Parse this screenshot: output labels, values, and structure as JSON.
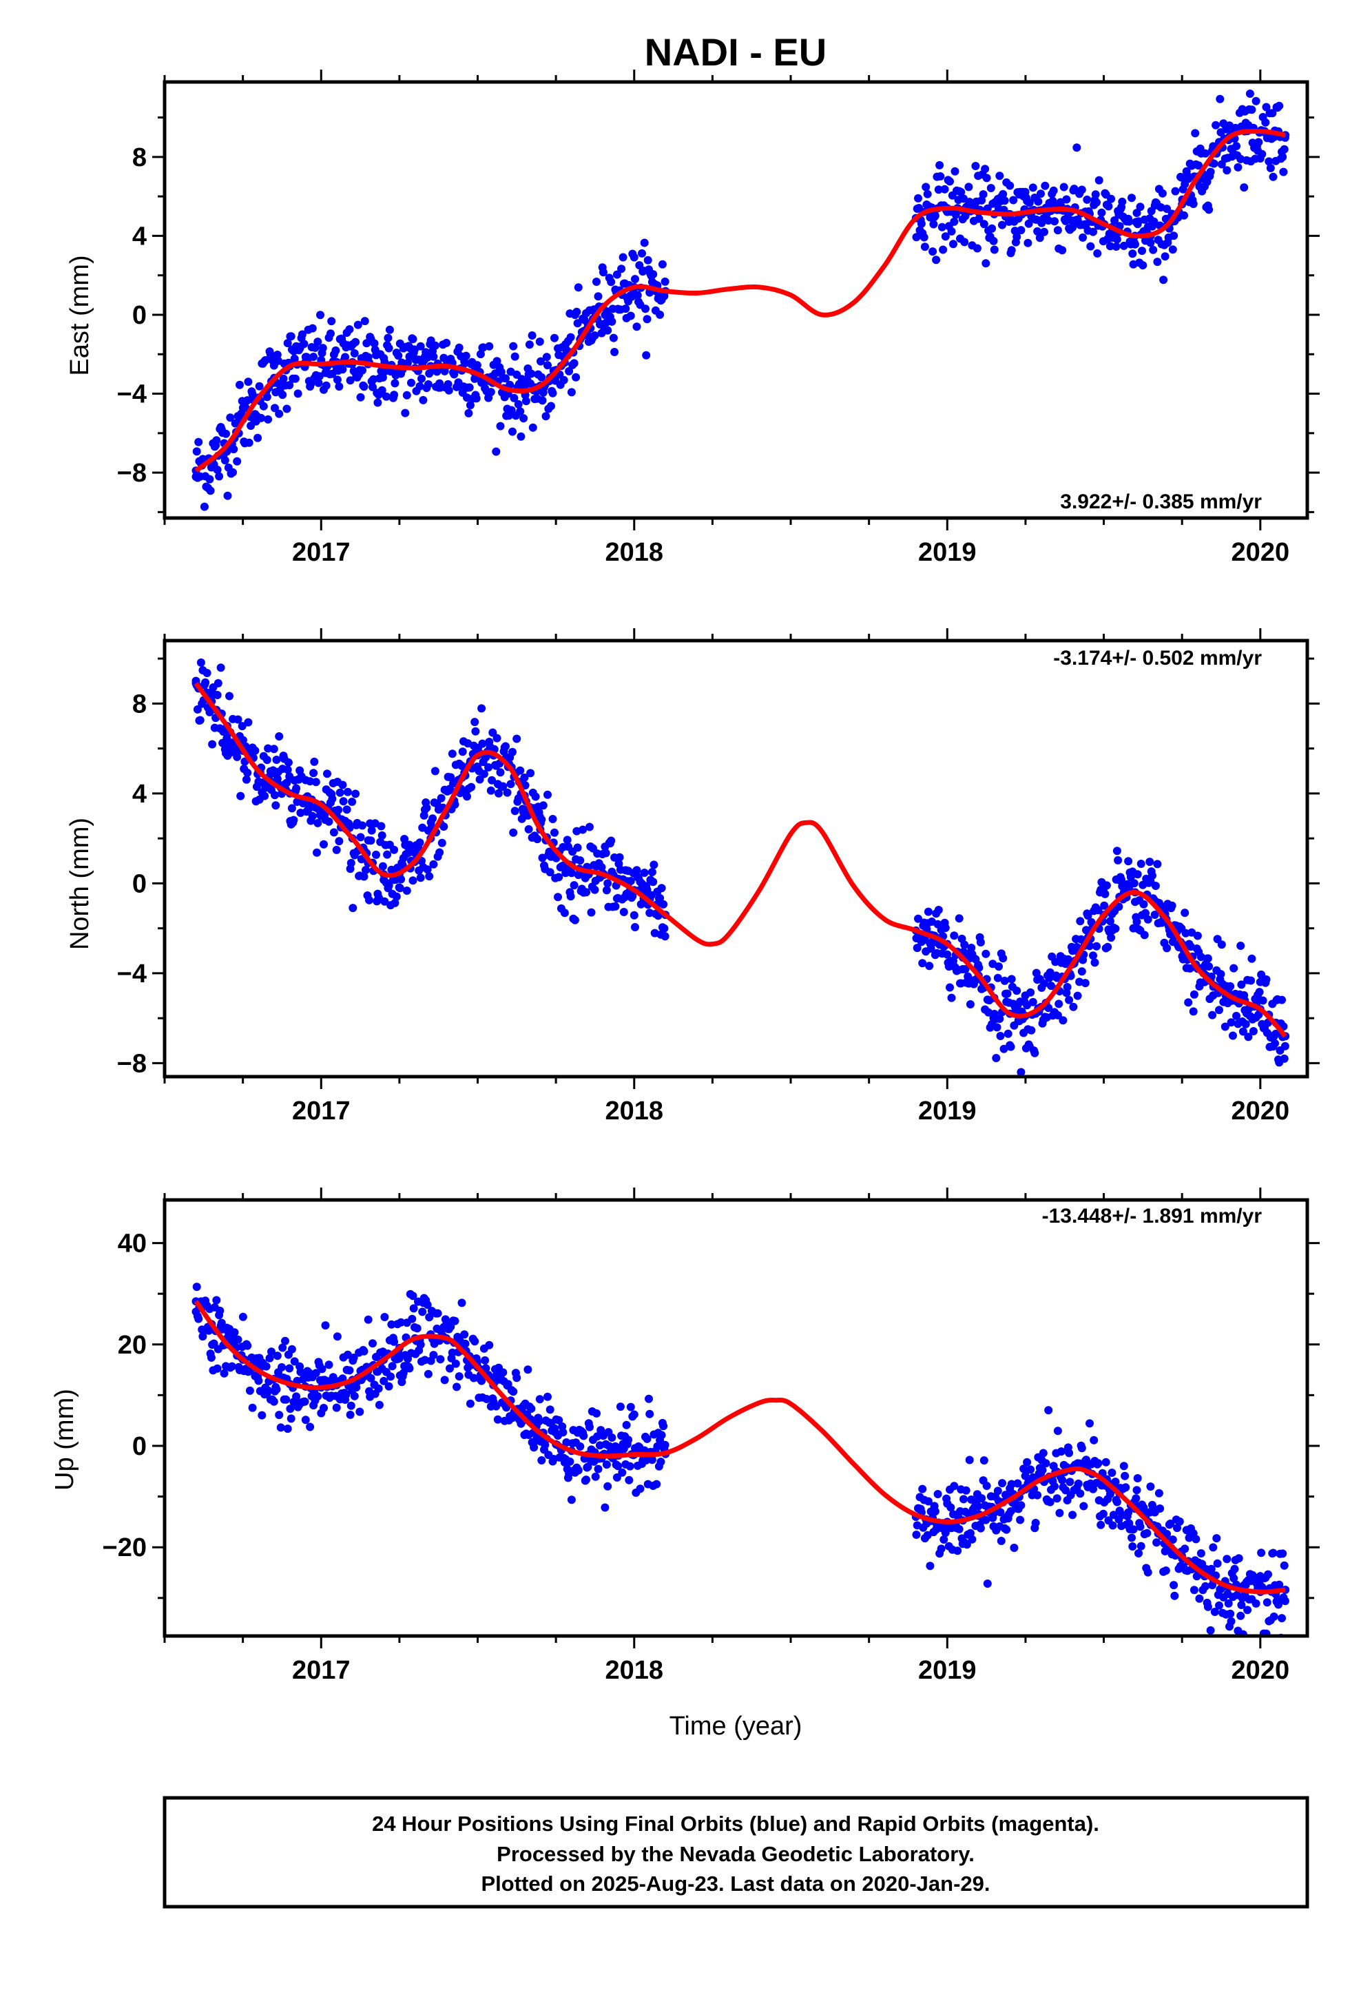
{
  "figure": {
    "title": "NADI - EU",
    "xlabel": "Time (year)",
    "footer": {
      "line1": "24 Hour Positions Using Final Orbits (blue) and Rapid Orbits (magenta).",
      "line2": "Processed by the Nevada Geodetic Laboratory.",
      "line3": "Plotted on 2025-Aug-23. Last data on 2020-Jan-29."
    },
    "colors": {
      "points": "#0000ff",
      "fit": "#ff0000",
      "frame": "#000000"
    }
  },
  "chart_data": [
    {
      "type": "scatter",
      "ylabel": "East (mm)",
      "rate_label": "3.922+/- 0.385 mm/yr",
      "rate_position": "bottom-right",
      "xlim": [
        2016.5,
        2020.15
      ],
      "ylim": [
        -10.3,
        11.8
      ],
      "xticks": [
        2017,
        2018,
        2019,
        2020
      ],
      "yticks": [
        -8,
        -4,
        0,
        4,
        8
      ],
      "grid": false,
      "series": [
        {
          "kind": "points",
          "color": "#0000ff",
          "x": [
            2016.6,
            2016.65,
            2016.7,
            2016.75,
            2016.8,
            2016.85,
            2016.9,
            2016.95,
            2017.0,
            2017.05,
            2017.1,
            2017.15,
            2017.2,
            2017.25,
            2017.3,
            2017.35,
            2017.4,
            2017.45,
            2017.5,
            2017.55,
            2017.6,
            2017.65,
            2017.7,
            2017.75,
            2017.8,
            2017.85,
            2017.9,
            2017.95,
            2018.0,
            2018.05,
            2018.1,
            2018.9,
            2018.95,
            2019.0,
            2019.05,
            2019.1,
            2019.15,
            2019.2,
            2019.25,
            2019.3,
            2019.35,
            2019.4,
            2019.45,
            2019.5,
            2019.55,
            2019.6,
            2019.65,
            2019.7,
            2019.75,
            2019.8,
            2019.85,
            2019.9,
            2019.95,
            2020.0,
            2020.05,
            2020.08
          ],
          "y": [
            -7.9,
            -7.5,
            -6.6,
            -5.3,
            -4.2,
            -3.2,
            -2.6,
            -2.4,
            -2.5,
            -2.4,
            -2.4,
            -2.5,
            -2.6,
            -2.7,
            -2.7,
            -2.6,
            -2.6,
            -2.7,
            -3.0,
            -3.4,
            -3.8,
            -3.9,
            -3.6,
            -2.9,
            -1.9,
            -0.7,
            0.4,
            1.2,
            1.4,
            1.3,
            1.2,
            4.9,
            5.4,
            5.4,
            5.3,
            5.2,
            5.1,
            5.1,
            5.2,
            5.3,
            5.4,
            5.3,
            5.0,
            4.6,
            4.2,
            4.0,
            4.0,
            4.5,
            5.6,
            7.0,
            8.2,
            9.0,
            9.3,
            9.3,
            9.2,
            9.1
          ]
        },
        {
          "kind": "fit",
          "color": "#ff0000",
          "x": [
            2016.6,
            2016.7,
            2016.8,
            2016.9,
            2017.0,
            2017.1,
            2017.2,
            2017.3,
            2017.4,
            2017.5,
            2017.6,
            2017.7,
            2017.8,
            2017.9,
            2018.0,
            2018.1,
            2018.2,
            2018.3,
            2018.4,
            2018.5,
            2018.6,
            2018.7,
            2018.8,
            2018.9,
            2019.0,
            2019.1,
            2019.2,
            2019.3,
            2019.4,
            2019.5,
            2019.6,
            2019.7,
            2019.8,
            2019.9,
            2020.0,
            2020.08
          ],
          "y": [
            -7.9,
            -6.6,
            -4.2,
            -2.6,
            -2.5,
            -2.4,
            -2.6,
            -2.7,
            -2.6,
            -3.0,
            -3.8,
            -3.6,
            -1.9,
            0.4,
            1.4,
            1.2,
            1.1,
            1.3,
            1.4,
            1.0,
            0.0,
            0.6,
            2.5,
            4.9,
            5.4,
            5.2,
            5.1,
            5.3,
            5.3,
            4.6,
            4.0,
            4.5,
            7.0,
            9.0,
            9.3,
            9.1
          ]
        }
      ]
    },
    {
      "type": "scatter",
      "ylabel": "North (mm)",
      "rate_label": "-3.174+/- 0.502 mm/yr",
      "rate_position": "top-right",
      "xlim": [
        2016.5,
        2020.15
      ],
      "ylim": [
        -8.6,
        10.8
      ],
      "xticks": [
        2017,
        2018,
        2019,
        2020
      ],
      "yticks": [
        -8,
        -4,
        0,
        4,
        8
      ],
      "grid": false,
      "series": [
        {
          "kind": "points",
          "color": "#0000ff",
          "x": [
            2016.6,
            2016.65,
            2016.7,
            2016.75,
            2016.8,
            2016.85,
            2016.9,
            2016.95,
            2017.0,
            2017.05,
            2017.1,
            2017.15,
            2017.2,
            2017.25,
            2017.3,
            2017.35,
            2017.4,
            2017.45,
            2017.5,
            2017.55,
            2017.6,
            2017.65,
            2017.7,
            2017.75,
            2017.8,
            2017.85,
            2017.9,
            2017.95,
            2018.0,
            2018.05,
            2018.1,
            2018.9,
            2018.95,
            2019.0,
            2019.05,
            2019.1,
            2019.15,
            2019.2,
            2019.25,
            2019.3,
            2019.35,
            2019.4,
            2019.45,
            2019.5,
            2019.55,
            2019.6,
            2019.65,
            2019.7,
            2019.75,
            2019.8,
            2019.85,
            2019.9,
            2019.95,
            2020.0,
            2020.05,
            2020.08
          ],
          "y": [
            8.9,
            8.1,
            7.0,
            5.9,
            5.0,
            4.5,
            4.0,
            3.8,
            3.5,
            3.0,
            2.0,
            0.9,
            0.4,
            0.4,
            1.0,
            2.0,
            3.3,
            4.7,
            5.7,
            5.9,
            5.2,
            3.9,
            2.4,
            1.3,
            0.8,
            0.5,
            0.4,
            0.2,
            -0.3,
            -0.7,
            -1.4,
            -2.1,
            -2.3,
            -2.7,
            -3.3,
            -4.1,
            -5.1,
            -5.8,
            -5.9,
            -5.5,
            -4.7,
            -3.6,
            -2.4,
            -1.4,
            -0.6,
            -0.4,
            -0.7,
            -1.6,
            -2.7,
            -3.8,
            -4.6,
            -5.0,
            -5.2,
            -5.6,
            -6.2,
            -6.8
          ]
        },
        {
          "kind": "fit",
          "color": "#ff0000",
          "x": [
            2016.6,
            2016.7,
            2016.8,
            2016.9,
            2017.0,
            2017.1,
            2017.2,
            2017.3,
            2017.4,
            2017.5,
            2017.6,
            2017.7,
            2017.8,
            2017.9,
            2018.0,
            2018.1,
            2018.2,
            2018.25,
            2018.3,
            2018.4,
            2018.5,
            2018.55,
            2018.6,
            2018.7,
            2018.8,
            2018.9,
            2019.0,
            2019.1,
            2019.2,
            2019.3,
            2019.4,
            2019.5,
            2019.6,
            2019.7,
            2019.8,
            2019.9,
            2020.0,
            2020.08
          ],
          "y": [
            8.9,
            7.0,
            5.0,
            4.0,
            3.5,
            2.0,
            0.4,
            1.0,
            3.3,
            5.7,
            5.2,
            2.4,
            0.8,
            0.4,
            -0.3,
            -1.4,
            -2.5,
            -2.7,
            -2.3,
            -0.3,
            2.2,
            2.7,
            2.3,
            -0.1,
            -1.6,
            -2.1,
            -2.7,
            -4.1,
            -5.8,
            -5.5,
            -3.6,
            -1.4,
            -0.4,
            -1.6,
            -3.8,
            -5.0,
            -5.6,
            -6.8
          ]
        }
      ]
    },
    {
      "type": "scatter",
      "ylabel": "Up (mm)",
      "rate_label": "-13.448+/- 1.891 mm/yr",
      "rate_position": "top-right",
      "xlim": [
        2016.5,
        2020.15
      ],
      "ylim": [
        -37.5,
        48.5
      ],
      "xticks": [
        2017,
        2018,
        2019,
        2020
      ],
      "yticks": [
        -20,
        0,
        20,
        40
      ],
      "grid": false,
      "series": [
        {
          "kind": "points",
          "color": "#0000ff",
          "x": [
            2016.6,
            2016.65,
            2016.7,
            2016.75,
            2016.8,
            2016.85,
            2016.9,
            2016.95,
            2017.0,
            2017.05,
            2017.1,
            2017.15,
            2017.2,
            2017.25,
            2017.3,
            2017.35,
            2017.4,
            2017.45,
            2017.5,
            2017.55,
            2017.6,
            2017.65,
            2017.7,
            2017.75,
            2017.8,
            2017.85,
            2017.9,
            2017.95,
            2018.0,
            2018.05,
            2018.1,
            2018.9,
            2018.95,
            2019.0,
            2019.05,
            2019.1,
            2019.15,
            2019.2,
            2019.25,
            2019.3,
            2019.35,
            2019.4,
            2019.45,
            2019.5,
            2019.55,
            2019.6,
            2019.65,
            2019.7,
            2019.75,
            2019.8,
            2019.85,
            2019.9,
            2019.95,
            2020.0,
            2020.05,
            2020.08
          ],
          "y": [
            28.5,
            24.0,
            20.0,
            17.0,
            14.8,
            13.2,
            12.2,
            11.7,
            11.5,
            12.0,
            13.0,
            14.8,
            17.0,
            19.3,
            21.2,
            22.0,
            21.2,
            18.8,
            15.5,
            12.0,
            8.5,
            5.4,
            2.5,
            0.3,
            -1.0,
            -1.8,
            -2.0,
            -1.9,
            -1.7,
            -1.6,
            -1.6,
            -14.0,
            -14.8,
            -15.0,
            -14.7,
            -13.8,
            -12.4,
            -10.6,
            -8.6,
            -6.6,
            -5.1,
            -4.6,
            -5.1,
            -6.8,
            -9.4,
            -12.4,
            -15.6,
            -18.8,
            -21.8,
            -24.4,
            -26.4,
            -27.8,
            -28.6,
            -28.8,
            -28.6,
            -28.4
          ]
        },
        {
          "kind": "fit",
          "color": "#ff0000",
          "x": [
            2016.6,
            2016.7,
            2016.8,
            2016.9,
            2017.0,
            2017.1,
            2017.2,
            2017.3,
            2017.4,
            2017.45,
            2017.5,
            2017.6,
            2017.7,
            2017.8,
            2017.9,
            2018.0,
            2018.1,
            2018.2,
            2018.3,
            2018.4,
            2018.45,
            2018.5,
            2018.6,
            2018.7,
            2018.8,
            2018.9,
            2019.0,
            2019.1,
            2019.2,
            2019.3,
            2019.4,
            2019.45,
            2019.5,
            2019.6,
            2019.7,
            2019.8,
            2019.9,
            2020.0,
            2020.08
          ],
          "y": [
            28.5,
            20.0,
            14.8,
            12.2,
            11.5,
            13.0,
            17.0,
            21.2,
            21.2,
            18.8,
            15.5,
            8.5,
            2.5,
            -1.0,
            -2.0,
            -1.7,
            -1.4,
            1.5,
            5.5,
            8.5,
            9.0,
            8.3,
            3.0,
            -3.5,
            -9.6,
            -13.6,
            -15.0,
            -13.8,
            -10.6,
            -6.6,
            -4.6,
            -5.1,
            -6.8,
            -12.4,
            -18.8,
            -24.4,
            -27.8,
            -28.8,
            -28.4
          ]
        }
      ]
    }
  ]
}
